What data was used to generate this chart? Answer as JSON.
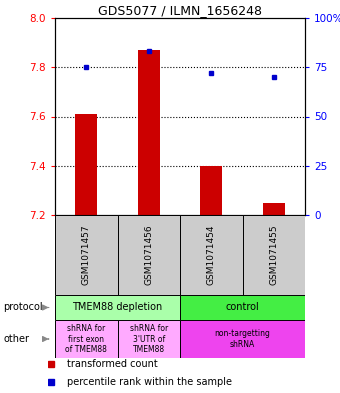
{
  "title": "GDS5077 / ILMN_1656248",
  "samples": [
    "GSM1071457",
    "GSM1071456",
    "GSM1071454",
    "GSM1071455"
  ],
  "bar_values": [
    7.61,
    7.87,
    7.4,
    7.25
  ],
  "bar_base": 7.2,
  "percentile_values": [
    75,
    83,
    72,
    70
  ],
  "ylim": [
    7.2,
    8.0
  ],
  "yticks_left": [
    7.2,
    7.4,
    7.6,
    7.8,
    8.0
  ],
  "yticks_right": [
    0,
    25,
    50,
    75,
    100
  ],
  "ytick_labels_right": [
    "0",
    "25",
    "50",
    "75",
    "100%"
  ],
  "dotted_lines": [
    7.4,
    7.6,
    7.8
  ],
  "bar_color": "#cc0000",
  "dot_color": "#0000cc",
  "bar_width": 0.35,
  "protocol_row": [
    {
      "label": "TMEM88 depletion",
      "span": [
        0,
        2
      ],
      "color": "#aaffaa"
    },
    {
      "label": "control",
      "span": [
        2,
        4
      ],
      "color": "#44ee44"
    }
  ],
  "other_row": [
    {
      "label": "shRNA for\nfirst exon\nof TMEM88",
      "span": [
        0,
        1
      ],
      "color": "#ffaaff"
    },
    {
      "label": "shRNA for\n3'UTR of\nTMEM88",
      "span": [
        1,
        2
      ],
      "color": "#ffaaff"
    },
    {
      "label": "non-targetting\nshRNA",
      "span": [
        2,
        4
      ],
      "color": "#ee44ee"
    }
  ],
  "legend_items": [
    {
      "label": "transformed count",
      "color": "#cc0000"
    },
    {
      "label": "percentile rank within the sample",
      "color": "#0000cc"
    }
  ]
}
